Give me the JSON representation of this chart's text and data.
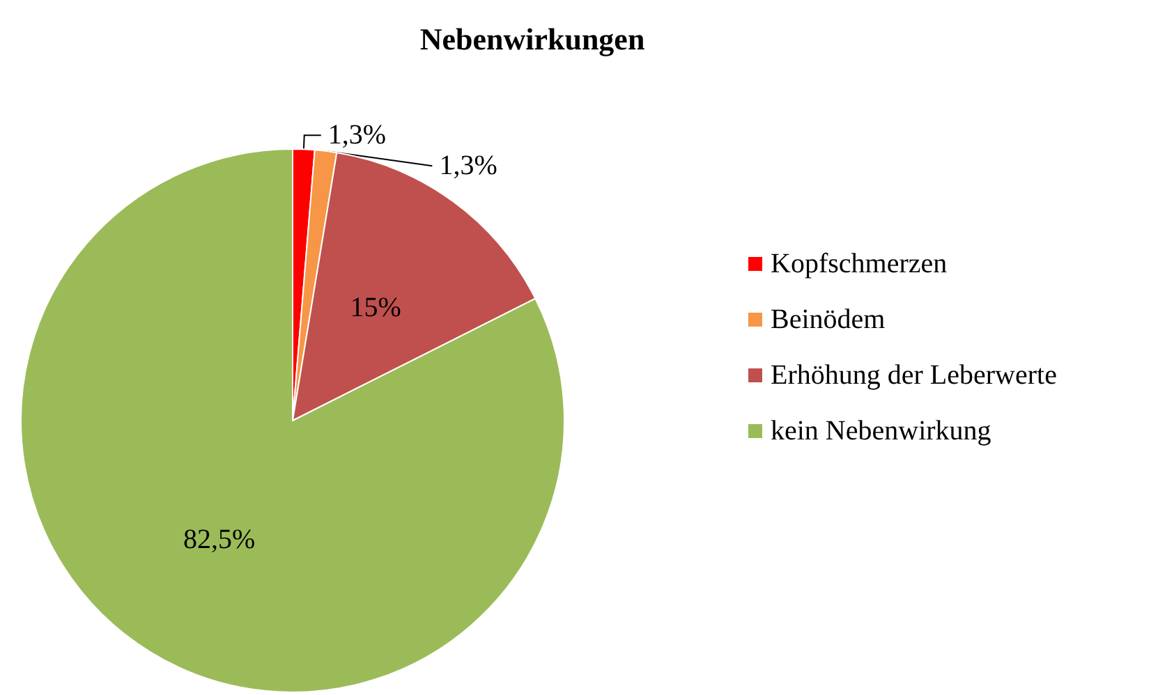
{
  "chart_data": {
    "type": "pie",
    "title": "Nebenwirkungen",
    "categories": [
      "Kopfschmerzen",
      "Beinödem",
      "Erhöhung der Leberwerte",
      "kein Nebenwirkung"
    ],
    "values": [
      1.3,
      1.3,
      15,
      82.5
    ],
    "colors": [
      "#ff0000",
      "#f79646",
      "#c0504d",
      "#9bbb59"
    ],
    "value_labels": [
      "1,3%",
      "1,3%",
      "15%",
      "82,5%"
    ],
    "legend": "right"
  }
}
